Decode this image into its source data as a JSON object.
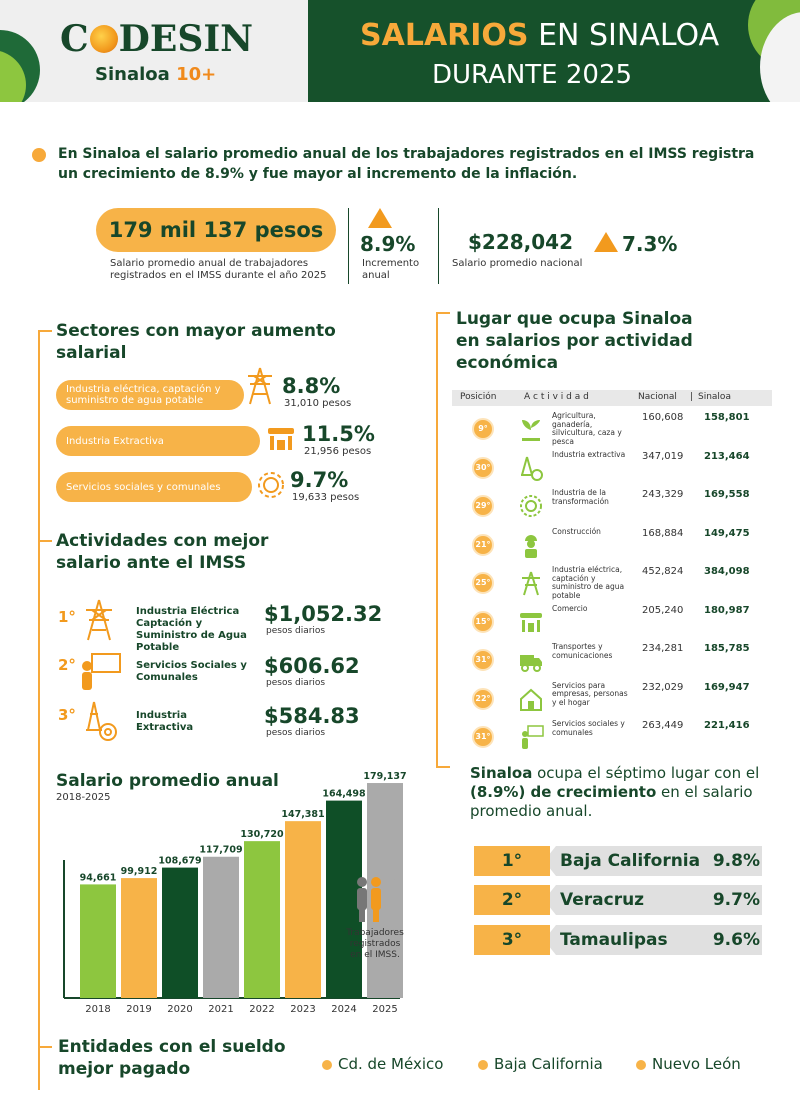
{
  "header": {
    "logo_text": "CODESIN",
    "logo_sub_a": "Sinaloa",
    "logo_sub_b": "10+",
    "title_highlight": "SALARIOS",
    "title_rest": "EN SINALOA",
    "title_line2": "DURANTE 2025"
  },
  "lead": "En Sinaloa el salario promedio anual de los trabajadores registrados en el IMSS registra un crecimiento de 8.9% y fue mayor al incremento de la inflación.",
  "stats": {
    "main_value": "179 mil 137 pesos",
    "main_caption": "Salario promedio anual de trabajadores registrados en el IMSS durante el año 2025",
    "increase_value": "8.9%",
    "increase_label": "Incremento anual",
    "national_value": "$228,042",
    "national_label": "Salario promedio nacional",
    "national_pct": "7.3%"
  },
  "sectors": {
    "title_line1": "Sectores con mayor aumento",
    "title_line2": "salarial",
    "items": [
      {
        "name": "Industria eléctrica, captación y suministro de agua potable",
        "pct": "8.8%",
        "amount": "31,010 pesos",
        "icon": "power-tower-icon"
      },
      {
        "name": "Industria Extractiva",
        "pct": "11.5%",
        "amount": "21,956 pesos",
        "icon": "store-icon"
      },
      {
        "name": "Servicios sociales y comunales",
        "pct": "9.7%",
        "amount": "19,633 pesos",
        "icon": "gear-icon"
      }
    ]
  },
  "activities": {
    "title_line1": "Actividades con mejor",
    "title_line2": "salario ante el IMSS",
    "items": [
      {
        "rank": "1°",
        "name": "Industria Eléctrica Captación y Suministro de Agua Potable",
        "value": "$1,052.32",
        "unit": "pesos diarios",
        "icon": "power-tower-icon"
      },
      {
        "rank": "2°",
        "name": "Servicios Sociales y Comunales",
        "value": "$606.62",
        "unit": "pesos diarios",
        "icon": "teacher-icon"
      },
      {
        "rank": "3°",
        "name": "Industria Extractiva",
        "value": "$584.83",
        "unit": "pesos diarios",
        "icon": "drill-icon"
      }
    ]
  },
  "table": {
    "title_line1": "Lugar que ocupa Sinaloa",
    "title_line2": "en salarios por actividad",
    "title_line3": "económica",
    "headers": {
      "pos": "Posición",
      "act": "A c t i v i d a d",
      "nat": "Nacional",
      "sep": "|",
      "sin": "Sinaloa"
    },
    "rows": [
      {
        "pos": "9°",
        "activity": "Agricultura, ganadería, silvicultura, caza y pesca",
        "nacional": "160,608",
        "sinaloa": "158,801",
        "icon": "plant-icon"
      },
      {
        "pos": "30°",
        "activity": "Industria extractiva",
        "nacional": "347,019",
        "sinaloa": "213,464",
        "icon": "drill-icon"
      },
      {
        "pos": "29°",
        "activity": "Industria de la transformación",
        "nacional": "243,329",
        "sinaloa": "169,558",
        "icon": "gear-icon"
      },
      {
        "pos": "21°",
        "activity": "Construcción",
        "nacional": "168,884",
        "sinaloa": "149,475",
        "icon": "worker-icon"
      },
      {
        "pos": "25°",
        "activity": "Industria eléctrica, captación y suministro de agua potable",
        "nacional": "452,824",
        "sinaloa": "384,098",
        "icon": "power-tower-icon"
      },
      {
        "pos": "15°",
        "activity": "Comercio",
        "nacional": "205,240",
        "sinaloa": "180,987",
        "icon": "store-icon"
      },
      {
        "pos": "31°",
        "activity": "Transportes y comunicaciones",
        "nacional": "234,281",
        "sinaloa": "185,785",
        "icon": "truck-icon"
      },
      {
        "pos": "22°",
        "activity": "Servicios para empresas, personas y el hogar",
        "nacional": "232,029",
        "sinaloa": "169,947",
        "icon": "house-icon"
      },
      {
        "pos": "31°",
        "activity": "Servicios sociales y comunales",
        "nacional": "263,449",
        "sinaloa": "221,416",
        "icon": "teacher-icon"
      }
    ]
  },
  "conclusion": {
    "a": "Sinaloa",
    "b": " ocupa el séptimo lugar con el ",
    "c": "(8.9%) de crecimiento",
    "d": " en el salario promedio anual."
  },
  "ranking": [
    {
      "rank": "1°",
      "state": "Baja California",
      "pct": "9.8%"
    },
    {
      "rank": "2°",
      "state": "Veracruz",
      "pct": "9.7%"
    },
    {
      "rank": "3°",
      "state": "Tamaulipas",
      "pct": "9.6%"
    }
  ],
  "chart_data": {
    "type": "bar",
    "title": "Salario promedio anual",
    "subtitle": "2018-2025",
    "categories": [
      "2018",
      "2019",
      "2020",
      "2021",
      "2022",
      "2023",
      "2024",
      "2025"
    ],
    "values": [
      94661,
      99912,
      108679,
      117709,
      130720,
      147381,
      164498,
      179137
    ],
    "value_labels": [
      "94,661",
      "99,912",
      "108,679",
      "117,709",
      "130,720",
      "147,381",
      "164,498",
      "179,137"
    ],
    "colors": [
      "#8dc63f",
      "#f7b348",
      "#0f4f27",
      "#aaaaaa",
      "#8dc63f",
      "#f7b348",
      "#0f4f27",
      "#aaaaaa"
    ],
    "ylim": [
      0,
      185000
    ],
    "annotation": "Trabajadores registrados en el IMSS."
  },
  "footer": {
    "title_line1": "Entidades con el sueldo",
    "title_line2": "mejor pagado",
    "legend": [
      "Cd. de México",
      "Baja California",
      "Nuevo León"
    ]
  }
}
